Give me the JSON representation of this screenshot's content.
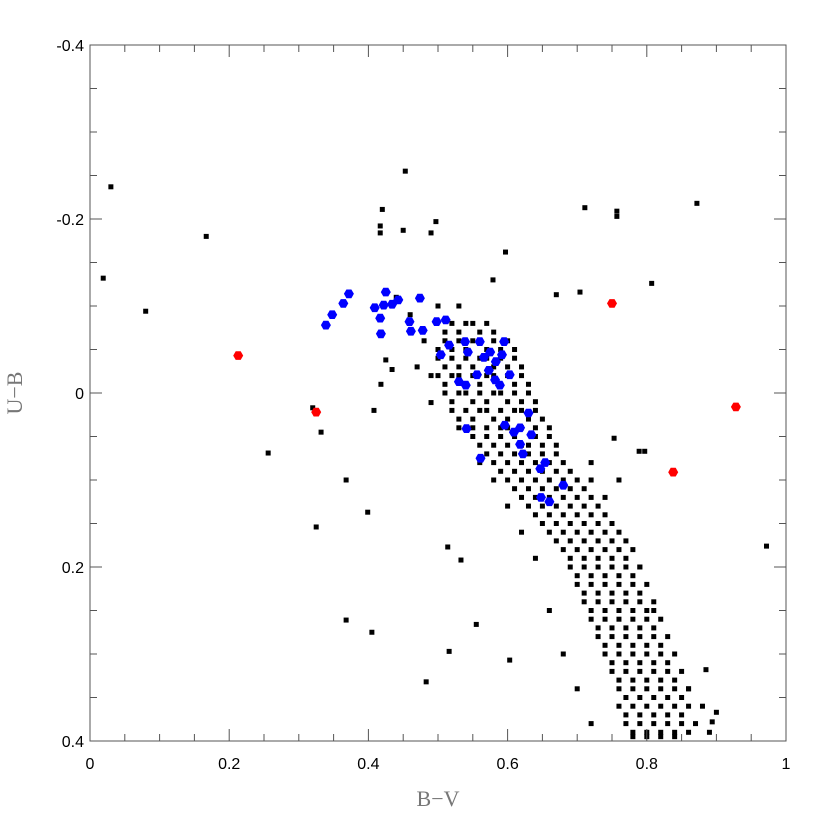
{
  "chart_data": {
    "type": "scatter",
    "title": "",
    "xlabel": "B−V",
    "ylabel": "U−B",
    "xlim": [
      0,
      1
    ],
    "ylim": [
      -0.4,
      0.4
    ],
    "y_inverted": true,
    "grid": false,
    "x_ticks": [
      "0",
      "0.2",
      "0.4",
      "0.6",
      "0.8",
      "1"
    ],
    "x_tick_values": [
      0,
      0.2,
      0.4,
      0.6,
      0.8,
      1
    ],
    "y_ticks": [
      "-0.4",
      "-0.2",
      "0",
      "0.2",
      "0.4"
    ],
    "y_tick_values": [
      -0.4,
      -0.2,
      0,
      0.2,
      0.4
    ],
    "colors": {
      "black": "#000000",
      "blue": "#0000ff",
      "red": "#ff0000",
      "axis": "#555555"
    },
    "series": [
      {
        "color": "#000000",
        "marker": "square",
        "points": [
          [
            0.03,
            -0.237
          ],
          [
            0.019,
            -0.132
          ],
          [
            0.08,
            -0.094
          ],
          [
            0.167,
            -0.18
          ],
          [
            0.256,
            0.069
          ],
          [
            0.32,
            0.017
          ],
          [
            0.332,
            0.045
          ],
          [
            0.325,
            0.154
          ],
          [
            0.368,
            0.1
          ],
          [
            0.368,
            0.261
          ],
          [
            0.405,
            0.275
          ],
          [
            0.399,
            0.137
          ],
          [
            0.483,
            0.332
          ],
          [
            0.516,
            0.297
          ],
          [
            0.514,
            0.177
          ],
          [
            0.533,
            0.192
          ],
          [
            0.453,
            -0.255
          ],
          [
            0.42,
            -0.211
          ],
          [
            0.417,
            -0.192
          ],
          [
            0.417,
            -0.184
          ],
          [
            0.45,
            -0.187
          ],
          [
            0.497,
            -0.197
          ],
          [
            0.49,
            -0.184
          ],
          [
            0.597,
            -0.162
          ],
          [
            0.579,
            -0.13
          ],
          [
            0.711,
            -0.213
          ],
          [
            0.757,
            -0.209
          ],
          [
            0.757,
            -0.203
          ],
          [
            0.872,
            -0.218
          ],
          [
            0.807,
            -0.126
          ],
          [
            0.704,
            -0.116
          ],
          [
            0.67,
            -0.113
          ],
          [
            0.753,
            0.052
          ],
          [
            0.789,
            0.067
          ],
          [
            0.797,
            0.067
          ],
          [
            0.972,
            0.176
          ],
          [
            0.894,
            0.378
          ],
          [
            0.9,
            0.367
          ],
          [
            0.885,
            0.318
          ],
          [
            0.425,
            -0.038
          ],
          [
            0.434,
            -0.027
          ],
          [
            0.418,
            -0.01
          ],
          [
            0.408,
            0.02
          ],
          [
            0.49,
            0.011
          ],
          [
            0.603,
            0.307
          ],
          [
            0.555,
            0.266
          ],
          [
            0.44,
            -0.11
          ],
          [
            0.46,
            -0.09
          ],
          [
            0.48,
            -0.06
          ],
          [
            0.5,
            -0.1
          ],
          [
            0.53,
            -0.1
          ],
          [
            0.47,
            -0.03
          ],
          [
            0.49,
            -0.02
          ],
          [
            0.86,
            0.34
          ],
          [
            0.88,
            0.36
          ],
          [
            0.89,
            0.39
          ],
          [
            0.72,
            0.08
          ],
          [
            0.74,
            0.12
          ],
          [
            0.76,
            0.1
          ],
          [
            0.79,
            0.2
          ],
          [
            0.81,
            0.25
          ],
          [
            0.66,
            0.25
          ],
          [
            0.68,
            0.3
          ],
          [
            0.7,
            0.34
          ],
          [
            0.72,
            0.38
          ],
          [
            0.64,
            0.19
          ],
          [
            0.62,
            0.16
          ],
          [
            0.6,
            0.13
          ],
          [
            0.58,
            0.1
          ],
          [
            0.56,
            0.08
          ]
        ],
        "bands": [
          {
            "y": -0.08,
            "x": [
              0.52,
              0.54,
              0.55,
              0.57
            ]
          },
          {
            "y": -0.07,
            "x": [
              0.51,
              0.53,
              0.56,
              0.58
            ]
          },
          {
            "y": -0.06,
            "x": [
              0.51,
              0.53,
              0.55,
              0.56,
              0.58,
              0.6
            ]
          },
          {
            "y": -0.05,
            "x": [
              0.5,
              0.52,
              0.54,
              0.57,
              0.59,
              0.61
            ]
          },
          {
            "y": -0.04,
            "x": [
              0.5,
              0.52,
              0.54,
              0.56,
              0.57,
              0.59,
              0.61
            ]
          },
          {
            "y": -0.03,
            "x": [
              0.51,
              0.53,
              0.55,
              0.58,
              0.6,
              0.62
            ]
          },
          {
            "y": -0.02,
            "x": [
              0.5,
              0.52,
              0.53,
              0.55,
              0.57,
              0.58,
              0.6,
              0.62
            ]
          },
          {
            "y": -0.01,
            "x": [
              0.51,
              0.54,
              0.56,
              0.59,
              0.61,
              0.63
            ]
          },
          {
            "y": 0.0,
            "x": [
              0.51,
              0.53,
              0.54,
              0.56,
              0.58,
              0.59,
              0.61,
              0.63
            ]
          },
          {
            "y": 0.01,
            "x": [
              0.52,
              0.55,
              0.57,
              0.6,
              0.62,
              0.64
            ]
          },
          {
            "y": 0.02,
            "x": [
              0.52,
              0.54,
              0.56,
              0.57,
              0.59,
              0.61,
              0.62,
              0.64
            ]
          },
          {
            "y": 0.03,
            "x": [
              0.53,
              0.55,
              0.58,
              0.6,
              0.63,
              0.65
            ]
          },
          {
            "y": 0.04,
            "x": [
              0.53,
              0.55,
              0.57,
              0.59,
              0.6,
              0.62,
              0.64,
              0.66
            ]
          },
          {
            "y": 0.05,
            "x": [
              0.55,
              0.57,
              0.59,
              0.61,
              0.64,
              0.66
            ]
          },
          {
            "y": 0.06,
            "x": [
              0.56,
              0.58,
              0.6,
              0.62,
              0.63,
              0.65,
              0.67
            ]
          },
          {
            "y": 0.07,
            "x": [
              0.57,
              0.59,
              0.61,
              0.63,
              0.65,
              0.67
            ]
          },
          {
            "y": 0.08,
            "x": [
              0.58,
              0.6,
              0.62,
              0.64,
              0.66,
              0.68
            ]
          },
          {
            "y": 0.09,
            "x": [
              0.59,
              0.61,
              0.63,
              0.65,
              0.67,
              0.69
            ]
          },
          {
            "y": 0.1,
            "x": [
              0.6,
              0.62,
              0.64,
              0.66,
              0.68,
              0.7,
              0.72
            ]
          },
          {
            "y": 0.11,
            "x": [
              0.61,
              0.63,
              0.65,
              0.67,
              0.69,
              0.71
            ]
          },
          {
            "y": 0.12,
            "x": [
              0.62,
              0.64,
              0.66,
              0.68,
              0.7,
              0.72
            ]
          },
          {
            "y": 0.13,
            "x": [
              0.63,
              0.65,
              0.67,
              0.69,
              0.71,
              0.73
            ]
          },
          {
            "y": 0.14,
            "x": [
              0.64,
              0.66,
              0.68,
              0.7,
              0.72,
              0.74
            ]
          },
          {
            "y": 0.15,
            "x": [
              0.65,
              0.67,
              0.69,
              0.71,
              0.73,
              0.75
            ]
          },
          {
            "y": 0.16,
            "x": [
              0.66,
              0.68,
              0.7,
              0.72,
              0.74,
              0.76
            ]
          },
          {
            "y": 0.17,
            "x": [
              0.67,
              0.69,
              0.71,
              0.73,
              0.75,
              0.77
            ]
          },
          {
            "y": 0.18,
            "x": [
              0.68,
              0.7,
              0.72,
              0.74,
              0.76,
              0.78
            ]
          },
          {
            "y": 0.19,
            "x": [
              0.69,
              0.71,
              0.73,
              0.75,
              0.77
            ]
          },
          {
            "y": 0.2,
            "x": [
              0.69,
              0.71,
              0.73,
              0.75,
              0.77,
              0.79
            ]
          },
          {
            "y": 0.21,
            "x": [
              0.7,
              0.72,
              0.74,
              0.76,
              0.78
            ]
          },
          {
            "y": 0.22,
            "x": [
              0.7,
              0.72,
              0.74,
              0.76,
              0.78,
              0.8
            ]
          },
          {
            "y": 0.23,
            "x": [
              0.71,
              0.73,
              0.75,
              0.77,
              0.79
            ]
          },
          {
            "y": 0.24,
            "x": [
              0.71,
              0.73,
              0.75,
              0.77,
              0.79,
              0.81
            ]
          },
          {
            "y": 0.25,
            "x": [
              0.72,
              0.74,
              0.76,
              0.78,
              0.8
            ]
          },
          {
            "y": 0.26,
            "x": [
              0.72,
              0.74,
              0.76,
              0.78,
              0.8,
              0.82
            ]
          },
          {
            "y": 0.27,
            "x": [
              0.73,
              0.75,
              0.77,
              0.79,
              0.81
            ]
          },
          {
            "y": 0.28,
            "x": [
              0.73,
              0.75,
              0.77,
              0.79,
              0.81,
              0.83
            ]
          },
          {
            "y": 0.29,
            "x": [
              0.74,
              0.76,
              0.78,
              0.8,
              0.82
            ]
          },
          {
            "y": 0.3,
            "x": [
              0.74,
              0.76,
              0.78,
              0.8,
              0.82,
              0.84
            ]
          },
          {
            "y": 0.31,
            "x": [
              0.75,
              0.77,
              0.79,
              0.81,
              0.83
            ]
          },
          {
            "y": 0.32,
            "x": [
              0.75,
              0.77,
              0.79,
              0.81,
              0.83,
              0.85
            ]
          },
          {
            "y": 0.33,
            "x": [
              0.76,
              0.78,
              0.8,
              0.82,
              0.84
            ]
          },
          {
            "y": 0.34,
            "x": [
              0.76,
              0.78,
              0.8,
              0.82,
              0.84,
              0.86
            ]
          },
          {
            "y": 0.35,
            "x": [
              0.77,
              0.79,
              0.81,
              0.83,
              0.85
            ]
          },
          {
            "y": 0.36,
            "x": [
              0.76,
              0.78,
              0.8,
              0.82,
              0.84,
              0.86
            ]
          },
          {
            "y": 0.37,
            "x": [
              0.77,
              0.79,
              0.81,
              0.83,
              0.85
            ]
          },
          {
            "y": 0.38,
            "x": [
              0.77,
              0.79,
              0.81,
              0.83,
              0.85,
              0.87
            ]
          },
          {
            "y": 0.39,
            "x": [
              0.78,
              0.8,
              0.82,
              0.84,
              0.86
            ]
          },
          {
            "y": 0.395,
            "x": [
              0.78,
              0.8,
              0.82,
              0.84
            ]
          }
        ]
      },
      {
        "color": "#0000ff",
        "marker": "hexagon",
        "points": [
          [
            0.339,
            -0.078
          ],
          [
            0.348,
            -0.09
          ],
          [
            0.364,
            -0.103
          ],
          [
            0.372,
            -0.114
          ],
          [
            0.409,
            -0.098
          ],
          [
            0.417,
            -0.086
          ],
          [
            0.418,
            -0.068
          ],
          [
            0.422,
            -0.101
          ],
          [
            0.425,
            -0.116
          ],
          [
            0.434,
            -0.102
          ],
          [
            0.443,
            -0.107
          ],
          [
            0.459,
            -0.082
          ],
          [
            0.461,
            -0.071
          ],
          [
            0.474,
            -0.109
          ],
          [
            0.478,
            -0.072
          ],
          [
            0.498,
            -0.082
          ],
          [
            0.511,
            -0.084
          ],
          [
            0.516,
            -0.055
          ],
          [
            0.504,
            -0.044
          ],
          [
            0.539,
            -0.059
          ],
          [
            0.543,
            -0.047
          ],
          [
            0.56,
            -0.059
          ],
          [
            0.566,
            -0.041
          ],
          [
            0.575,
            -0.047
          ],
          [
            0.583,
            -0.036
          ],
          [
            0.595,
            -0.059
          ],
          [
            0.592,
            -0.044
          ],
          [
            0.53,
            -0.013
          ],
          [
            0.54,
            -0.009
          ],
          [
            0.556,
            -0.021
          ],
          [
            0.573,
            -0.026
          ],
          [
            0.582,
            -0.015
          ],
          [
            0.589,
            -0.009
          ],
          [
            0.603,
            -0.021
          ],
          [
            0.541,
            0.041
          ],
          [
            0.561,
            0.075
          ],
          [
            0.596,
            0.037
          ],
          [
            0.609,
            0.045
          ],
          [
            0.618,
            0.059
          ],
          [
            0.63,
            0.023
          ],
          [
            0.634,
            0.048
          ],
          [
            0.647,
            0.087
          ],
          [
            0.654,
            0.08
          ],
          [
            0.648,
            0.12
          ],
          [
            0.68,
            0.106
          ],
          [
            0.618,
            0.04
          ],
          [
            0.622,
            0.07
          ],
          [
            0.66,
            0.125
          ]
        ]
      },
      {
        "color": "#ff0000",
        "marker": "hexagon",
        "points": [
          [
            0.213,
            -0.043
          ],
          [
            0.325,
            0.022
          ],
          [
            0.75,
            -0.103
          ],
          [
            0.838,
            0.091
          ],
          [
            0.928,
            0.016
          ]
        ]
      }
    ]
  }
}
